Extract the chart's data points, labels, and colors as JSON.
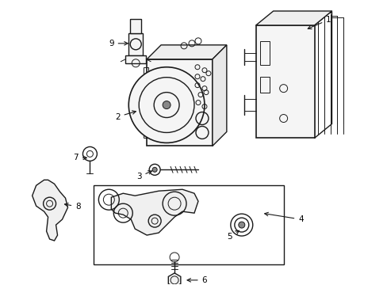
{
  "background_color": "#ffffff",
  "line_color": "#1a1a1a",
  "label_color": "#000000",
  "figsize": [
    4.89,
    3.6
  ],
  "dpi": 100,
  "label_fontsize": 7.5
}
